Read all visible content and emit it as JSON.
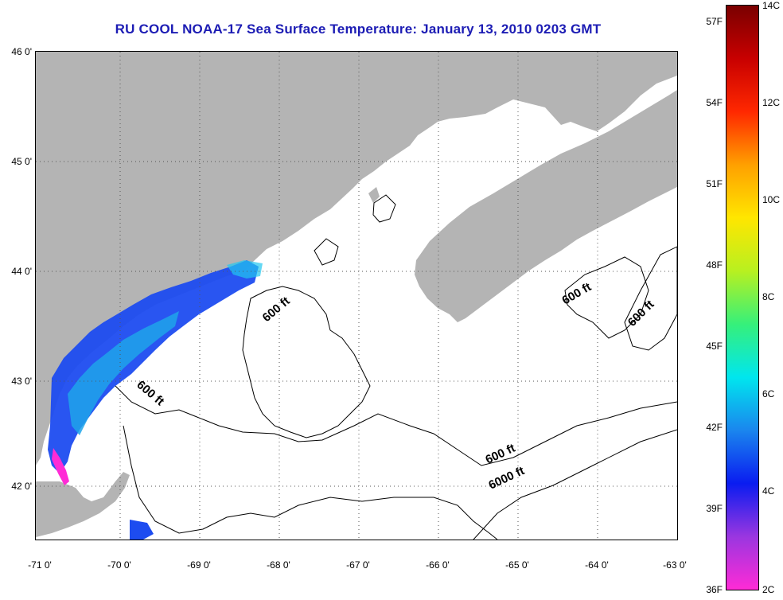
{
  "title": "RU COOL  NOAA-17  Sea Surface Temperature:  January 13, 2010 0203 GMT",
  "map": {
    "lat_labels": [
      "46 0'",
      "45 0'",
      "44 0'",
      "43 0'",
      "42 0'"
    ],
    "lon_labels": [
      "-71 0'",
      "-70 0'",
      "-69 0'",
      "-68 0'",
      "-67 0'",
      "-66 0'",
      "-65 0'",
      "-64 0'",
      "-63 0'"
    ],
    "lat_range": [
      41.5,
      46.0
    ],
    "lon_range": [
      -71.0,
      -63.0
    ],
    "land_color": "#b4b4b4",
    "water_color": "#ffffff",
    "grid": "dotted",
    "contour_labels": [
      "600 ft",
      "600 ft",
      "600 ft",
      "600 ft",
      "6000 ft",
      "600 ft"
    ]
  },
  "colorbar": {
    "fahrenheit_labels": [
      "57F",
      "54F",
      "51F",
      "48F",
      "45F",
      "42F",
      "39F",
      "36F"
    ],
    "celsius_labels": [
      "14C",
      "12C",
      "10C",
      "8C",
      "6C",
      "4C",
      "2C"
    ],
    "range_c": [
      2,
      14
    ],
    "colors": [
      "#ff2bd6",
      "#9a36e0",
      "#0a1cf0",
      "#1a86ee",
      "#00e6ee",
      "#36f07a",
      "#b8f020",
      "#ffe600",
      "#ffa000",
      "#ff2800",
      "#c80000",
      "#7a0000"
    ]
  }
}
